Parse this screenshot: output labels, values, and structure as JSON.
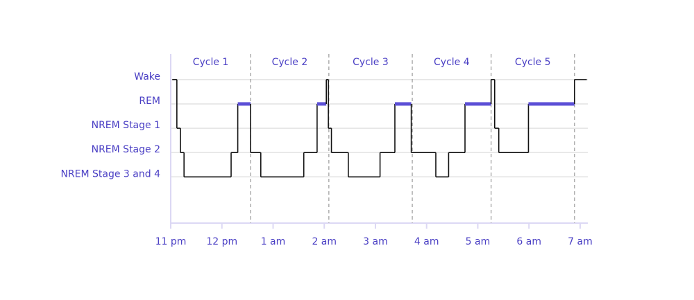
{
  "chart_data": {
    "type": "step",
    "xlim": [
      0,
      8.15
    ],
    "xticks": [
      {
        "value": 0,
        "label": "11 pm"
      },
      {
        "value": 1,
        "label": "12 pm"
      },
      {
        "value": 2,
        "label": "1 am"
      },
      {
        "value": 3,
        "label": "2 am"
      },
      {
        "value": 4,
        "label": "3 am"
      },
      {
        "value": 5,
        "label": "4 am"
      },
      {
        "value": 6,
        "label": "5 am"
      },
      {
        "value": 7,
        "label": "6 am"
      },
      {
        "value": 8,
        "label": "7 am"
      }
    ],
    "ylim": [
      -1.9,
      5.05
    ],
    "yticks": [
      {
        "value": 4,
        "label": "Wake"
      },
      {
        "value": 3,
        "label": "REM"
      },
      {
        "value": 2,
        "label": "NREM Stage 1"
      },
      {
        "value": 1,
        "label": "NREM Stage 2"
      },
      {
        "value": 0,
        "label": "NREM Stage 3 and 4"
      }
    ],
    "grid": true,
    "cycles": {
      "names": [
        "Cycle 1",
        "Cycle 2",
        "Cycle 3",
        "Cycle 4",
        "Cycle 5"
      ],
      "boundaries": [
        1.56,
        3.09,
        4.72,
        6.26,
        7.89
      ]
    },
    "series": [
      {
        "color": "#111111",
        "highlight_level": 3,
        "highlight_color": "#5b4fd6",
        "x": [
          0.03,
          0.12,
          0.19,
          0.26,
          1.18,
          1.31,
          1.56,
          1.76,
          2.6,
          2.86,
          3.04,
          3.08,
          3.14,
          3.47,
          4.09,
          4.38,
          4.7,
          5.18,
          5.43,
          5.75,
          6.26,
          6.33,
          6.41,
          6.99,
          7.89,
          8.13
        ],
        "values": [
          4,
          2,
          1,
          0,
          1,
          3,
          1,
          0,
          1,
          3,
          4,
          2,
          1,
          0,
          1,
          3,
          1,
          0,
          1,
          3,
          4,
          2,
          1,
          3,
          4,
          4
        ]
      }
    ]
  }
}
